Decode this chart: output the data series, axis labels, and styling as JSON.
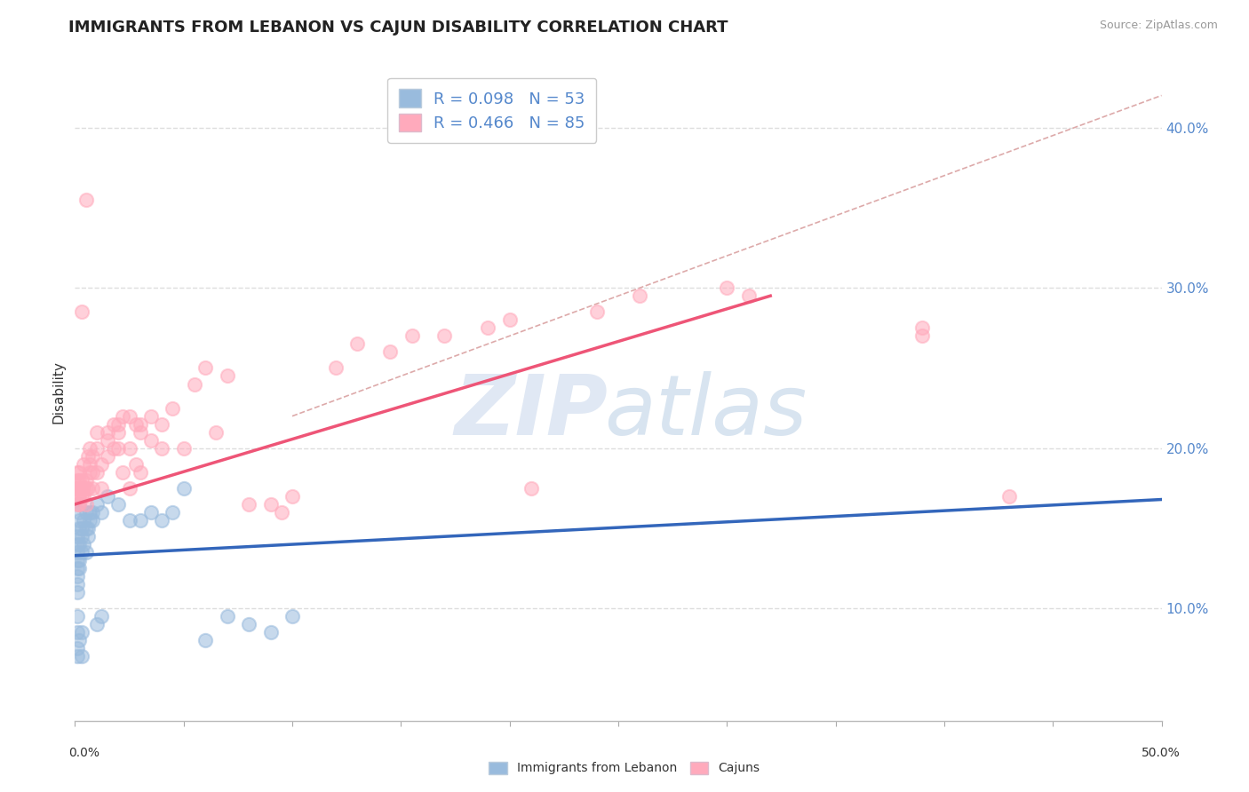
{
  "title": "IMMIGRANTS FROM LEBANON VS CAJUN DISABILITY CORRELATION CHART",
  "source": "Source: ZipAtlas.com",
  "ylabel": "Disability",
  "yticks_labels": [
    "10.0%",
    "20.0%",
    "30.0%",
    "40.0%"
  ],
  "ytick_values": [
    0.1,
    0.2,
    0.3,
    0.4
  ],
  "xlim": [
    0.0,
    0.5
  ],
  "ylim": [
    0.03,
    0.44
  ],
  "color_blue": "#99BBDD",
  "color_pink": "#FFAABC",
  "color_blue_line": "#3366BB",
  "color_pink_line": "#EE5577",
  "color_dashed": "#DDAAAA",
  "background_color": "#FFFFFF",
  "grid_color": "#DDDDDD",
  "scatter_blue": [
    [
      0.001,
      0.13
    ],
    [
      0.001,
      0.125
    ],
    [
      0.001,
      0.135
    ],
    [
      0.001,
      0.14
    ],
    [
      0.001,
      0.145
    ],
    [
      0.001,
      0.115
    ],
    [
      0.001,
      0.12
    ],
    [
      0.001,
      0.11
    ],
    [
      0.002,
      0.13
    ],
    [
      0.002,
      0.14
    ],
    [
      0.002,
      0.125
    ],
    [
      0.002,
      0.15
    ],
    [
      0.002,
      0.16
    ],
    [
      0.002,
      0.155
    ],
    [
      0.002,
      0.165
    ],
    [
      0.003,
      0.135
    ],
    [
      0.003,
      0.145
    ],
    [
      0.003,
      0.15
    ],
    [
      0.004,
      0.14
    ],
    [
      0.004,
      0.155
    ],
    [
      0.005,
      0.135
    ],
    [
      0.005,
      0.15
    ],
    [
      0.005,
      0.16
    ],
    [
      0.006,
      0.15
    ],
    [
      0.006,
      0.145
    ],
    [
      0.007,
      0.155
    ],
    [
      0.007,
      0.16
    ],
    [
      0.008,
      0.16
    ],
    [
      0.008,
      0.155
    ],
    [
      0.01,
      0.165
    ],
    [
      0.01,
      0.09
    ],
    [
      0.012,
      0.16
    ],
    [
      0.012,
      0.095
    ],
    [
      0.015,
      0.17
    ],
    [
      0.02,
      0.165
    ],
    [
      0.025,
      0.155
    ],
    [
      0.03,
      0.155
    ],
    [
      0.035,
      0.16
    ],
    [
      0.04,
      0.155
    ],
    [
      0.045,
      0.16
    ],
    [
      0.05,
      0.175
    ],
    [
      0.06,
      0.08
    ],
    [
      0.07,
      0.095
    ],
    [
      0.08,
      0.09
    ],
    [
      0.09,
      0.085
    ],
    [
      0.1,
      0.095
    ],
    [
      0.001,
      0.095
    ],
    [
      0.001,
      0.085
    ],
    [
      0.001,
      0.075
    ],
    [
      0.001,
      0.07
    ],
    [
      0.002,
      0.08
    ],
    [
      0.003,
      0.07
    ],
    [
      0.003,
      0.085
    ]
  ],
  "scatter_pink": [
    [
      0.001,
      0.175
    ],
    [
      0.001,
      0.17
    ],
    [
      0.001,
      0.18
    ],
    [
      0.001,
      0.165
    ],
    [
      0.001,
      0.185
    ],
    [
      0.001,
      0.175
    ],
    [
      0.002,
      0.18
    ],
    [
      0.002,
      0.185
    ],
    [
      0.002,
      0.175
    ],
    [
      0.002,
      0.17
    ],
    [
      0.002,
      0.165
    ],
    [
      0.002,
      0.175
    ],
    [
      0.003,
      0.175
    ],
    [
      0.003,
      0.18
    ],
    [
      0.003,
      0.17
    ],
    [
      0.003,
      0.285
    ],
    [
      0.004,
      0.17
    ],
    [
      0.004,
      0.19
    ],
    [
      0.004,
      0.175
    ],
    [
      0.005,
      0.175
    ],
    [
      0.005,
      0.18
    ],
    [
      0.005,
      0.165
    ],
    [
      0.005,
      0.355
    ],
    [
      0.006,
      0.195
    ],
    [
      0.006,
      0.175
    ],
    [
      0.007,
      0.2
    ],
    [
      0.007,
      0.19
    ],
    [
      0.007,
      0.185
    ],
    [
      0.008,
      0.185
    ],
    [
      0.008,
      0.195
    ],
    [
      0.008,
      0.175
    ],
    [
      0.01,
      0.2
    ],
    [
      0.01,
      0.21
    ],
    [
      0.01,
      0.185
    ],
    [
      0.012,
      0.175
    ],
    [
      0.012,
      0.19
    ],
    [
      0.015,
      0.205
    ],
    [
      0.015,
      0.21
    ],
    [
      0.015,
      0.195
    ],
    [
      0.018,
      0.215
    ],
    [
      0.018,
      0.2
    ],
    [
      0.02,
      0.215
    ],
    [
      0.02,
      0.2
    ],
    [
      0.02,
      0.21
    ],
    [
      0.022,
      0.22
    ],
    [
      0.022,
      0.185
    ],
    [
      0.025,
      0.175
    ],
    [
      0.025,
      0.2
    ],
    [
      0.025,
      0.22
    ],
    [
      0.028,
      0.19
    ],
    [
      0.028,
      0.215
    ],
    [
      0.03,
      0.215
    ],
    [
      0.03,
      0.185
    ],
    [
      0.03,
      0.21
    ],
    [
      0.035,
      0.22
    ],
    [
      0.035,
      0.205
    ],
    [
      0.04,
      0.215
    ],
    [
      0.04,
      0.2
    ],
    [
      0.045,
      0.225
    ],
    [
      0.05,
      0.2
    ],
    [
      0.055,
      0.24
    ],
    [
      0.06,
      0.25
    ],
    [
      0.065,
      0.21
    ],
    [
      0.07,
      0.245
    ],
    [
      0.08,
      0.165
    ],
    [
      0.09,
      0.165
    ],
    [
      0.095,
      0.16
    ],
    [
      0.1,
      0.17
    ],
    [
      0.12,
      0.25
    ],
    [
      0.13,
      0.265
    ],
    [
      0.145,
      0.26
    ],
    [
      0.155,
      0.27
    ],
    [
      0.17,
      0.27
    ],
    [
      0.19,
      0.275
    ],
    [
      0.2,
      0.28
    ],
    [
      0.21,
      0.175
    ],
    [
      0.24,
      0.285
    ],
    [
      0.26,
      0.295
    ],
    [
      0.3,
      0.3
    ],
    [
      0.31,
      0.295
    ],
    [
      0.39,
      0.27
    ],
    [
      0.39,
      0.275
    ],
    [
      0.43,
      0.17
    ]
  ],
  "blue_line_x": [
    0.0,
    0.5
  ],
  "blue_line_y": [
    0.133,
    0.168
  ],
  "pink_line_x": [
    0.0,
    0.32
  ],
  "pink_line_y": [
    0.165,
    0.295
  ],
  "dashed_line_x": [
    0.1,
    0.5
  ],
  "dashed_line_y": [
    0.22,
    0.42
  ]
}
